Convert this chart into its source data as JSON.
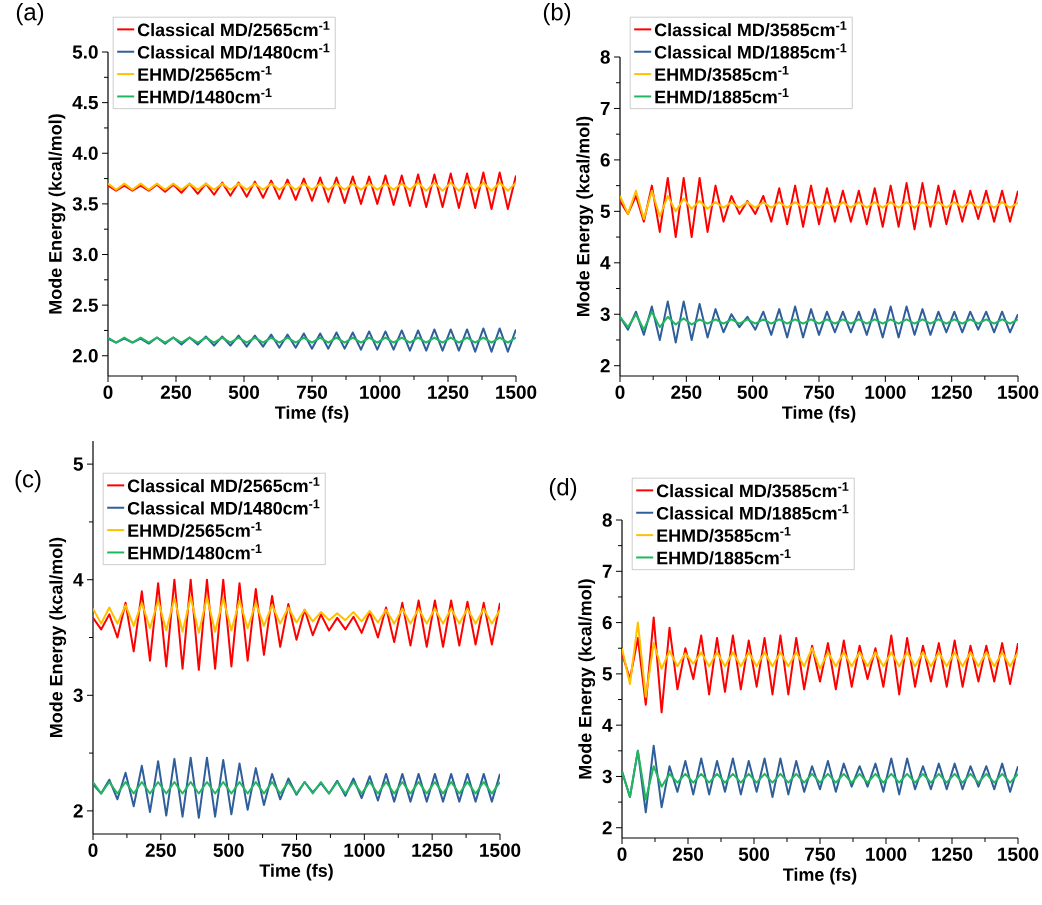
{
  "chart_data": [
    {
      "type": "line",
      "title": "(a)",
      "xlabel": "Time (fs)",
      "ylabel": "Mode Energy (kcal/mol)",
      "legend": "top left",
      "xlim": [
        0,
        1500
      ],
      "ylim": [
        1.8,
        5.0
      ],
      "xticks": [
        0,
        250,
        500,
        750,
        1000,
        1250,
        1500
      ],
      "yticks": [
        {
          "value": 2,
          "label": "2.0"
        },
        {
          "value": 2.5,
          "label": "2.5"
        },
        {
          "value": 3,
          "label": "3.0"
        },
        {
          "value": 3.5,
          "label": "3.5"
        },
        {
          "value": 4,
          "label": "4.0"
        },
        {
          "value": 4.5,
          "label": "4.5"
        },
        {
          "value": 5,
          "label": "5.0"
        }
      ],
      "x": [
        0,
        30,
        60,
        90,
        120,
        150,
        180,
        210,
        240,
        270,
        300,
        330,
        360,
        390,
        420,
        450,
        480,
        510,
        540,
        570,
        600,
        630,
        660,
        690,
        720,
        750,
        780,
        810,
        840,
        870,
        900,
        930,
        960,
        990,
        1020,
        1050,
        1080,
        1110,
        1140,
        1170,
        1200,
        1230,
        1260,
        1290,
        1320,
        1350,
        1380,
        1410,
        1440,
        1470,
        1500
      ],
      "series": [
        {
          "name": "Classical MD/2565cm$^{-1}$",
          "color": "#ff0000",
          "values": [
            3.68,
            3.63,
            3.68,
            3.63,
            3.68,
            3.63,
            3.69,
            3.62,
            3.69,
            3.61,
            3.7,
            3.6,
            3.7,
            3.59,
            3.71,
            3.58,
            3.71,
            3.57,
            3.72,
            3.56,
            3.73,
            3.55,
            3.74,
            3.54,
            3.75,
            3.53,
            3.76,
            3.52,
            3.76,
            3.51,
            3.77,
            3.5,
            3.77,
            3.5,
            3.78,
            3.49,
            3.78,
            3.48,
            3.79,
            3.47,
            3.79,
            3.47,
            3.8,
            3.46,
            3.8,
            3.46,
            3.81,
            3.45,
            3.81,
            3.45,
            3.78
          ]
        },
        {
          "name": "Classical MD/1480cm$^{-1}$",
          "color": "#2f5f9a",
          "values": [
            2.17,
            2.13,
            2.17,
            2.13,
            2.17,
            2.12,
            2.18,
            2.12,
            2.18,
            2.11,
            2.18,
            2.11,
            2.19,
            2.1,
            2.19,
            2.1,
            2.2,
            2.09,
            2.2,
            2.09,
            2.21,
            2.08,
            2.21,
            2.08,
            2.22,
            2.07,
            2.22,
            2.07,
            2.23,
            2.07,
            2.23,
            2.06,
            2.24,
            2.06,
            2.24,
            2.06,
            2.25,
            2.05,
            2.25,
            2.05,
            2.26,
            2.05,
            2.26,
            2.05,
            2.26,
            2.04,
            2.27,
            2.04,
            2.27,
            2.04,
            2.26
          ]
        },
        {
          "name": "EHMD/2565cm$^{-1}$",
          "color": "#ffc000",
          "values": [
            3.7,
            3.64,
            3.7,
            3.64,
            3.7,
            3.64,
            3.7,
            3.64,
            3.7,
            3.64,
            3.7,
            3.64,
            3.7,
            3.64,
            3.7,
            3.64,
            3.7,
            3.64,
            3.7,
            3.64,
            3.7,
            3.64,
            3.7,
            3.64,
            3.7,
            3.64,
            3.7,
            3.64,
            3.7,
            3.64,
            3.7,
            3.64,
            3.7,
            3.64,
            3.7,
            3.64,
            3.7,
            3.64,
            3.71,
            3.63,
            3.71,
            3.63,
            3.71,
            3.63,
            3.71,
            3.63,
            3.71,
            3.63,
            3.71,
            3.63,
            3.71
          ]
        },
        {
          "name": "EHMD/1480cm$^{-1}$",
          "color": "#22b75f",
          "values": [
            2.18,
            2.13,
            2.18,
            2.13,
            2.18,
            2.13,
            2.18,
            2.13,
            2.18,
            2.13,
            2.18,
            2.13,
            2.18,
            2.13,
            2.18,
            2.13,
            2.18,
            2.13,
            2.18,
            2.13,
            2.18,
            2.13,
            2.18,
            2.13,
            2.18,
            2.13,
            2.18,
            2.13,
            2.18,
            2.13,
            2.18,
            2.13,
            2.18,
            2.13,
            2.18,
            2.13,
            2.18,
            2.13,
            2.18,
            2.13,
            2.18,
            2.13,
            2.18,
            2.13,
            2.18,
            2.13,
            2.18,
            2.13,
            2.18,
            2.13,
            2.18
          ]
        }
      ]
    },
    {
      "type": "line",
      "title": "(b)",
      "xlabel": "Time (fs)",
      "ylabel": "Mode Energy (kcal/mol)",
      "legend": "top left",
      "xlim": [
        0,
        1500
      ],
      "ylim": [
        1.8,
        8
      ],
      "xticks": [
        0,
        250,
        500,
        750,
        1000,
        1250,
        1500
      ],
      "yticks": [
        2,
        3,
        4,
        5,
        6,
        7,
        8
      ],
      "x": [
        0,
        30,
        60,
        90,
        120,
        150,
        180,
        210,
        240,
        270,
        300,
        330,
        360,
        390,
        420,
        450,
        480,
        510,
        540,
        570,
        600,
        630,
        660,
        690,
        720,
        750,
        780,
        810,
        840,
        870,
        900,
        930,
        960,
        990,
        1020,
        1050,
        1080,
        1110,
        1140,
        1170,
        1200,
        1230,
        1260,
        1290,
        1320,
        1350,
        1380,
        1410,
        1440,
        1470,
        1500
      ],
      "series": [
        {
          "name": "Classical MD/3585cm$^{-1}$",
          "color": "#ff0000",
          "values": [
            5.2,
            4.95,
            5.3,
            4.8,
            5.5,
            4.6,
            5.65,
            4.5,
            5.65,
            4.5,
            5.65,
            4.6,
            5.5,
            4.8,
            5.3,
            4.95,
            5.2,
            4.95,
            5.3,
            4.8,
            5.45,
            4.75,
            5.5,
            4.7,
            5.5,
            4.75,
            5.45,
            4.8,
            5.4,
            4.8,
            5.4,
            4.75,
            5.45,
            4.7,
            5.5,
            4.7,
            5.55,
            4.65,
            5.55,
            4.7,
            5.5,
            4.75,
            5.4,
            4.8,
            5.4,
            4.85,
            5.4,
            4.8,
            5.4,
            4.8,
            5.4
          ]
        },
        {
          "name": "Classical MD/1885cm$^{-1}$",
          "color": "#2f5f9a",
          "values": [
            2.95,
            2.7,
            3.05,
            2.6,
            3.15,
            2.5,
            3.25,
            2.45,
            3.25,
            2.5,
            3.2,
            2.55,
            3.1,
            2.65,
            3.0,
            2.75,
            2.95,
            2.7,
            3.05,
            2.6,
            3.1,
            2.55,
            3.15,
            2.55,
            3.1,
            2.6,
            3.05,
            2.65,
            3.05,
            2.65,
            3.05,
            2.6,
            3.1,
            2.55,
            3.15,
            2.55,
            3.15,
            2.6,
            3.1,
            2.6,
            3.05,
            2.65,
            3.05,
            2.65,
            3.05,
            2.7,
            3.05,
            2.65,
            3.05,
            2.65,
            3.0
          ]
        },
        {
          "name": "EHMD/3585cm$^{-1}$",
          "color": "#ffc000",
          "values": [
            5.3,
            4.95,
            5.4,
            4.85,
            5.4,
            4.9,
            5.3,
            5.0,
            5.25,
            5.05,
            5.2,
            5.05,
            5.18,
            5.07,
            5.18,
            5.07,
            5.18,
            5.07,
            5.18,
            5.07,
            5.18,
            5.07,
            5.18,
            5.07,
            5.18,
            5.07,
            5.18,
            5.07,
            5.18,
            5.07,
            5.18,
            5.07,
            5.18,
            5.07,
            5.18,
            5.07,
            5.18,
            5.07,
            5.18,
            5.07,
            5.18,
            5.07,
            5.18,
            5.07,
            5.18,
            5.07,
            5.18,
            5.07,
            5.18,
            5.07,
            5.17
          ]
        },
        {
          "name": "EHMD/1885cm$^{-1}$",
          "color": "#22b75f",
          "values": [
            2.95,
            2.75,
            3.0,
            2.7,
            3.05,
            2.75,
            2.95,
            2.8,
            2.92,
            2.8,
            2.9,
            2.82,
            2.9,
            2.82,
            2.9,
            2.82,
            2.9,
            2.82,
            2.9,
            2.82,
            2.9,
            2.82,
            2.9,
            2.82,
            2.9,
            2.82,
            2.9,
            2.82,
            2.9,
            2.82,
            2.9,
            2.82,
            2.9,
            2.82,
            2.9,
            2.82,
            2.9,
            2.82,
            2.9,
            2.82,
            2.9,
            2.82,
            2.9,
            2.82,
            2.9,
            2.82,
            2.9,
            2.82,
            2.9,
            2.82,
            2.9
          ]
        }
      ]
    },
    {
      "type": "line",
      "title": "(c)",
      "xlabel": "Time (fs)",
      "ylabel": "Mode Energy (kcal/mol)",
      "legend": "top left",
      "xlim": [
        0,
        1500
      ],
      "ylim": [
        1.8,
        5.2
      ],
      "xticks": [
        0,
        250,
        500,
        750,
        1000,
        1250,
        1500
      ],
      "yticks": [
        2,
        3,
        4,
        5
      ],
      "x": [
        0,
        30,
        60,
        90,
        120,
        150,
        180,
        210,
        240,
        270,
        300,
        330,
        360,
        390,
        420,
        450,
        480,
        510,
        540,
        570,
        600,
        630,
        660,
        690,
        720,
        750,
        780,
        810,
        840,
        870,
        900,
        930,
        960,
        990,
        1020,
        1050,
        1080,
        1110,
        1140,
        1170,
        1200,
        1230,
        1260,
        1290,
        1320,
        1350,
        1380,
        1410,
        1440,
        1470,
        1500
      ],
      "series": [
        {
          "name": "Classical MD/2565cm$^{-1}$",
          "color": "#ff0000",
          "values": [
            3.67,
            3.57,
            3.7,
            3.5,
            3.8,
            3.38,
            3.9,
            3.3,
            3.97,
            3.25,
            4.0,
            3.23,
            4.0,
            3.22,
            4.0,
            3.23,
            4.0,
            3.25,
            3.97,
            3.3,
            3.92,
            3.35,
            3.86,
            3.42,
            3.79,
            3.48,
            3.74,
            3.52,
            3.7,
            3.56,
            3.67,
            3.57,
            3.68,
            3.54,
            3.72,
            3.5,
            3.76,
            3.46,
            3.8,
            3.43,
            3.82,
            3.42,
            3.82,
            3.42,
            3.82,
            3.43,
            3.81,
            3.44,
            3.8,
            3.44,
            3.8
          ]
        },
        {
          "name": "Classical MD/1480cm$^{-1}$",
          "color": "#2f5f9a",
          "values": [
            2.23,
            2.15,
            2.27,
            2.1,
            2.33,
            2.04,
            2.39,
            1.99,
            2.43,
            1.96,
            2.45,
            1.95,
            2.46,
            1.94,
            2.46,
            1.95,
            2.44,
            1.97,
            2.41,
            2.01,
            2.37,
            2.05,
            2.32,
            2.1,
            2.28,
            2.14,
            2.25,
            2.16,
            2.24,
            2.15,
            2.26,
            2.13,
            2.28,
            2.11,
            2.3,
            2.09,
            2.32,
            2.08,
            2.32,
            2.08,
            2.32,
            2.08,
            2.32,
            2.08,
            2.32,
            2.08,
            2.32,
            2.08,
            2.32,
            2.08,
            2.32
          ]
        },
        {
          "name": "EHMD/2565cm$^{-1}$",
          "color": "#ffc000",
          "values": [
            3.75,
            3.62,
            3.76,
            3.62,
            3.78,
            3.6,
            3.8,
            3.58,
            3.82,
            3.56,
            3.84,
            3.55,
            3.85,
            3.54,
            3.85,
            3.55,
            3.84,
            3.56,
            3.82,
            3.58,
            3.8,
            3.6,
            3.78,
            3.62,
            3.76,
            3.63,
            3.74,
            3.64,
            3.72,
            3.65,
            3.71,
            3.65,
            3.72,
            3.64,
            3.73,
            3.63,
            3.74,
            3.62,
            3.75,
            3.62,
            3.75,
            3.62,
            3.75,
            3.62,
            3.75,
            3.62,
            3.75,
            3.62,
            3.75,
            3.62,
            3.74
          ]
        },
        {
          "name": "EHMD/1480cm$^{-1}$",
          "color": "#22b75f",
          "values": [
            2.25,
            2.15,
            2.25,
            2.15,
            2.25,
            2.15,
            2.25,
            2.15,
            2.25,
            2.15,
            2.25,
            2.15,
            2.25,
            2.15,
            2.25,
            2.15,
            2.25,
            2.15,
            2.25,
            2.15,
            2.25,
            2.15,
            2.25,
            2.15,
            2.25,
            2.15,
            2.25,
            2.15,
            2.25,
            2.15,
            2.25,
            2.15,
            2.25,
            2.15,
            2.25,
            2.15,
            2.25,
            2.15,
            2.25,
            2.15,
            2.25,
            2.15,
            2.25,
            2.15,
            2.25,
            2.15,
            2.25,
            2.15,
            2.25,
            2.15,
            2.25
          ]
        }
      ]
    },
    {
      "type": "line",
      "title": "(d)",
      "xlabel": "Time (fs)",
      "ylabel": "Mode Energy (kcal/mol)",
      "legend": "top left",
      "xlim": [
        0,
        1500
      ],
      "ylim": [
        1.8,
        8
      ],
      "xticks": [
        0,
        250,
        500,
        750,
        1000,
        1250,
        1500
      ],
      "yticks": [
        2,
        3,
        4,
        5,
        6,
        7,
        8
      ],
      "x": [
        0,
        30,
        60,
        90,
        120,
        150,
        180,
        210,
        240,
        270,
        300,
        330,
        360,
        390,
        420,
        450,
        480,
        510,
        540,
        570,
        600,
        630,
        660,
        690,
        720,
        750,
        780,
        810,
        840,
        870,
        900,
        930,
        960,
        990,
        1020,
        1050,
        1080,
        1110,
        1140,
        1170,
        1200,
        1230,
        1260,
        1290,
        1320,
        1350,
        1380,
        1410,
        1440,
        1470,
        1500
      ],
      "series": [
        {
          "name": "Classical MD/3585cm$^{-1}$",
          "color": "#ff0000",
          "values": [
            5.4,
            4.9,
            5.7,
            4.4,
            6.1,
            4.25,
            5.9,
            4.7,
            5.5,
            4.9,
            5.75,
            4.6,
            5.7,
            4.65,
            5.75,
            4.7,
            5.65,
            4.75,
            5.7,
            4.6,
            5.75,
            4.6,
            5.7,
            4.7,
            5.55,
            4.85,
            5.6,
            4.7,
            5.65,
            4.75,
            5.55,
            4.9,
            5.5,
            4.75,
            5.75,
            4.6,
            5.7,
            4.75,
            5.55,
            4.85,
            5.6,
            4.75,
            5.65,
            4.75,
            5.55,
            4.85,
            5.55,
            4.85,
            5.6,
            4.8,
            5.6
          ]
        },
        {
          "name": "Classical MD/1885cm$^{-1}$",
          "color": "#2f5f9a",
          "values": [
            3.1,
            2.6,
            3.5,
            2.3,
            3.6,
            2.4,
            3.2,
            2.7,
            3.3,
            2.65,
            3.35,
            2.65,
            3.3,
            2.7,
            3.35,
            2.65,
            3.3,
            2.7,
            3.35,
            2.6,
            3.35,
            2.65,
            3.3,
            2.7,
            3.2,
            2.75,
            3.3,
            2.7,
            3.25,
            2.8,
            3.2,
            2.8,
            3.25,
            2.7,
            3.35,
            2.65,
            3.35,
            2.75,
            3.2,
            2.75,
            3.25,
            2.75,
            3.25,
            2.75,
            3.2,
            2.8,
            3.2,
            2.75,
            3.25,
            2.7,
            3.2
          ]
        },
        {
          "name": "EHMD/3585cm$^{-1}$",
          "color": "#ffc000",
          "values": [
            5.5,
            4.8,
            6.0,
            4.55,
            5.6,
            5.1,
            5.45,
            5.15,
            5.4,
            5.2,
            5.42,
            5.15,
            5.42,
            5.15,
            5.42,
            5.15,
            5.42,
            5.15,
            5.42,
            5.15,
            5.42,
            5.15,
            5.42,
            5.15,
            5.5,
            5.1,
            5.42,
            5.15,
            5.42,
            5.15,
            5.42,
            5.15,
            5.42,
            5.15,
            5.42,
            5.15,
            5.42,
            5.15,
            5.42,
            5.15,
            5.42,
            5.15,
            5.42,
            5.15,
            5.42,
            5.15,
            5.42,
            5.15,
            5.42,
            5.15,
            5.42
          ]
        },
        {
          "name": "EHMD/1885cm$^{-1}$",
          "color": "#22b75f",
          "values": [
            3.1,
            2.6,
            3.5,
            2.55,
            3.2,
            2.8,
            3.05,
            2.88,
            3.05,
            2.88,
            3.05,
            2.88,
            3.05,
            2.88,
            3.05,
            2.88,
            3.05,
            2.88,
            3.05,
            2.88,
            3.05,
            2.88,
            3.05,
            2.88,
            3.05,
            2.88,
            3.05,
            2.88,
            3.05,
            2.88,
            3.05,
            2.88,
            3.05,
            2.88,
            3.05,
            2.88,
            3.05,
            2.88,
            3.05,
            2.88,
            3.05,
            2.88,
            3.05,
            2.88,
            3.05,
            2.88,
            3.05,
            2.88,
            3.05,
            2.88,
            3.05
          ]
        }
      ]
    }
  ]
}
